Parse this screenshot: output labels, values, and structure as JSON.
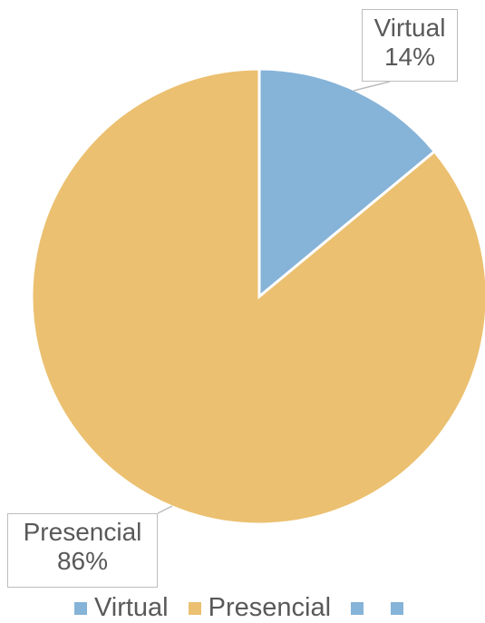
{
  "chart_data": {
    "type": "pie",
    "categories": [
      "Virtual",
      "Presencial"
    ],
    "values": [
      14,
      86
    ],
    "unit": "%",
    "colors": [
      "#86b3d8",
      "#ebc070"
    ],
    "data_labels": [
      {
        "category": "Virtual",
        "value": "14%"
      },
      {
        "category": "Presencial",
        "value": "86%"
      }
    ],
    "legend": {
      "placement": "bottom",
      "entries": [
        {
          "label": "Virtual",
          "color": "#86b3d8"
        },
        {
          "label": "Presencial",
          "color": "#ebc070"
        },
        {
          "label": "",
          "color": "#86b3d8"
        },
        {
          "label": "",
          "color": "#86b3d8"
        }
      ]
    }
  }
}
